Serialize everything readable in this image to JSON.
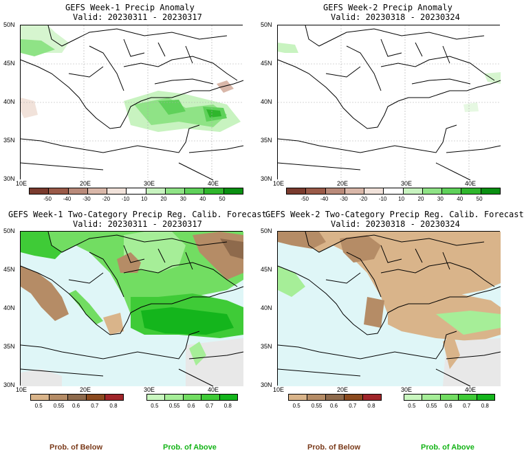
{
  "panels": {
    "p1": {
      "title": "GEFS Week-1 Precip Anomaly",
      "valid": "Valid: 20230311 - 20230317"
    },
    "p2": {
      "title": "GEFS Week-2 Precip Anomaly",
      "valid": "Valid: 20230318 - 20230324"
    },
    "p3": {
      "title": "GEFS Week-1 Two-Category Precip Reg. Calib. Forecast",
      "valid": "Valid: 20230311 - 20230317"
    },
    "p4": {
      "title": "GEFS Week-2 Two-Category Precip Reg. Calib. Forecast",
      "valid": "Valid: 20230318 - 20230324"
    }
  },
  "lat_labels": [
    "50N",
    "45N",
    "40N",
    "35N",
    "30N"
  ],
  "lon_labels": [
    "10E",
    "20E",
    "30E",
    "40E"
  ],
  "anomaly_scale": {
    "labels": [
      "-50",
      "-40",
      "-30",
      "-20",
      "-10",
      "10",
      "20",
      "30",
      "40",
      "50"
    ],
    "colors": [
      "#7a3b2e",
      "#9a5a48",
      "#b98a7a",
      "#d9b7a9",
      "#f1e2da",
      "#ffffff",
      "#c8f3c0",
      "#8fe386",
      "#5fd15a",
      "#2fb62c",
      "#0a8f12"
    ]
  },
  "prob_below": {
    "labels": [
      "0.5",
      "0.55",
      "0.6",
      "0.7",
      "0.8"
    ],
    "colors": [
      "#d9b48a",
      "#b58c66",
      "#8e6a4c",
      "#8b4a1f",
      "#a0252a"
    ]
  },
  "prob_above": {
    "labels": [
      "0.5",
      "0.55",
      "0.6",
      "0.7",
      "0.8"
    ],
    "colors": [
      "#c9f7bf",
      "#a6ee98",
      "#72dd62",
      "#3fcb37",
      "#14b51c"
    ]
  },
  "legend": {
    "below": "Prob. of Below",
    "above": "Prob. of Above"
  },
  "colors": {
    "sea": "#dff6f7",
    "gray": "#e8e8e8",
    "brown": "#d6b48a",
    "green": "#3fd13a",
    "below_text": "#7a3a1a",
    "above_text": "#13b316"
  }
}
